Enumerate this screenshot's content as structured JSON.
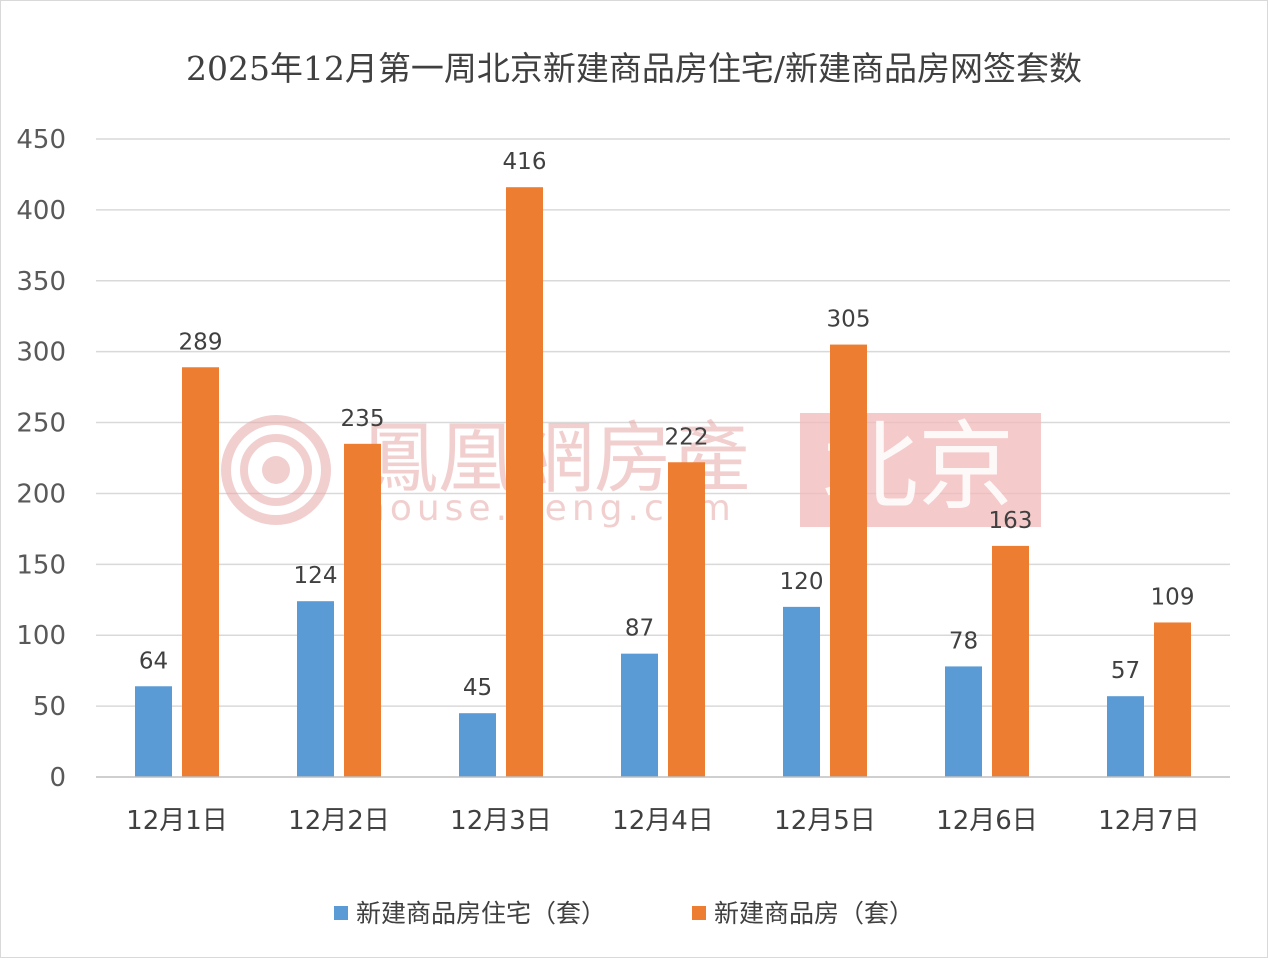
{
  "chart_data": {
    "type": "bar",
    "title": "2025年12月第一周北京新建商品房住宅/新建商品房网签套数",
    "categories": [
      "12月1日",
      "12月2日",
      "12月3日",
      "12月4日",
      "12月5日",
      "12月6日",
      "12月7日"
    ],
    "series": [
      {
        "name": "新建商品房住宅（套）",
        "color": "#5b9bd5",
        "values": [
          64,
          124,
          45,
          87,
          120,
          78,
          57
        ]
      },
      {
        "name": "新建商品房（套）",
        "color": "#ed7d31",
        "values": [
          289,
          235,
          416,
          222,
          305,
          163,
          109
        ]
      }
    ],
    "ylim": [
      0,
      450
    ],
    "yticks": [
      0,
      50,
      100,
      150,
      200,
      250,
      300,
      350,
      400,
      450
    ],
    "grid": true,
    "legend_position": "bottom",
    "data_labels": true
  },
  "watermark": {
    "logo_text": "鳳凰網房產",
    "url_text": "house.ifeng.com",
    "city_text": "北京",
    "color": "#e8a8a8"
  }
}
